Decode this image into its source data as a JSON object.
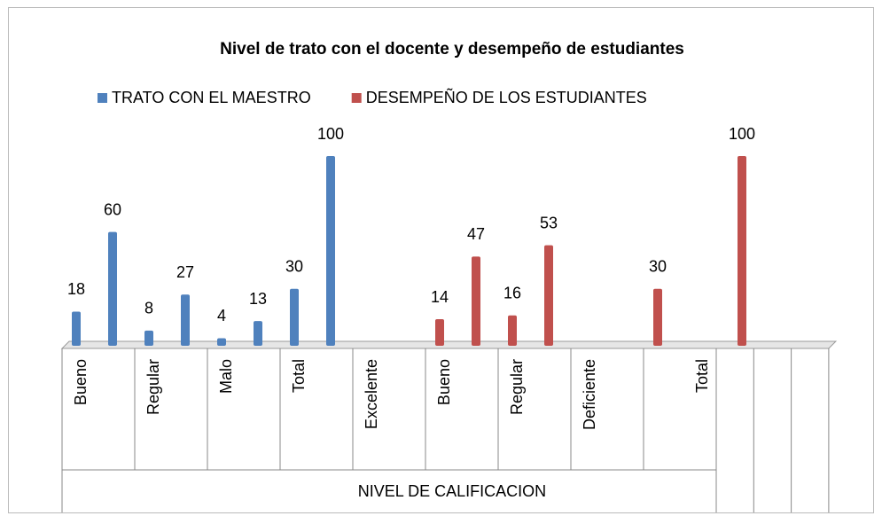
{
  "chart_data": {
    "type": "bar",
    "title": "Nivel de trato con el docente y desempeño de estudiantes",
    "x_label": "NIVEL DE CALIFICACION",
    "categories": [
      "Bueno",
      "Regular",
      "Malo",
      "Total",
      "Excelente",
      "Bueno",
      "Regular",
      "Deficiente",
      "Total",
      null,
      null,
      null
    ],
    "series": [
      {
        "name": "TRATO CON EL MAESTRO",
        "color": "#4f81bd",
        "values": [
          18,
          8,
          4,
          30,
          null,
          null,
          null,
          null,
          null,
          null,
          null,
          null
        ]
      },
      {
        "color": "#4f81bd",
        "values": [
          60,
          27,
          13,
          100,
          null,
          null,
          null,
          null,
          null,
          null,
          null,
          null
        ]
      },
      {
        "name": "DESEMPEÑO DE LOS ESTUDIANTES",
        "color": "#c0504d",
        "values": [
          null,
          null,
          null,
          null,
          null,
          14,
          16,
          null,
          30,
          null,
          null,
          null
        ]
      },
      {
        "color": "#c0504d",
        "values": [
          null,
          null,
          null,
          null,
          null,
          47,
          53,
          null,
          null,
          100,
          null,
          null
        ]
      }
    ]
  }
}
